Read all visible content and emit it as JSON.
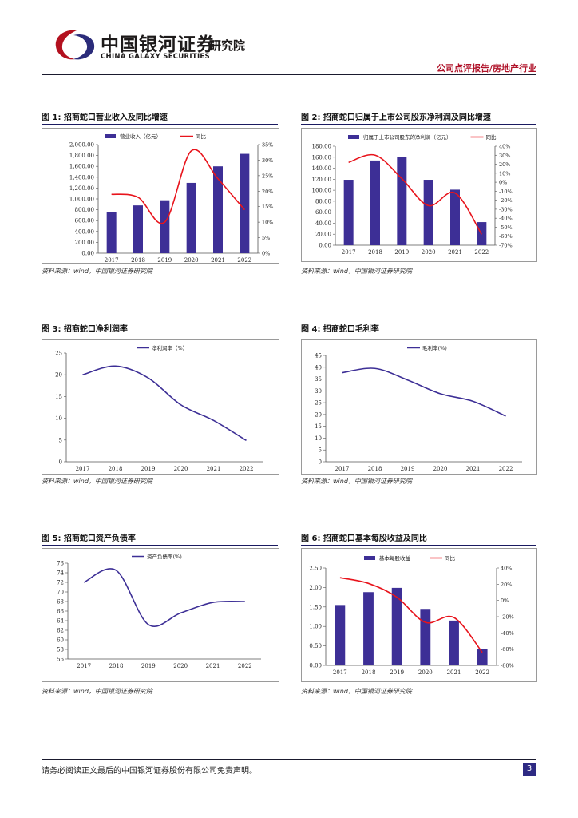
{
  "header": {
    "company_cn": "中国银河证券",
    "company_en": "CHINA GALAXY SECURITIES",
    "institute": "研究院",
    "report_type": "公司点评报告/房地产行业"
  },
  "footer": {
    "disclaimer": "请务必阅读正文最后的中国银河证券股份有限公司免责声明。",
    "page_number": "3"
  },
  "colors": {
    "bar": "#3d2f96",
    "line_red": "#e8141c",
    "line_blue": "#3d2f96"
  },
  "figures": [
    {
      "title": "图 1:  招商蛇口营业收入及同比增速",
      "source": "资料来源：wind，中国银河证券研究院"
    },
    {
      "title": "图 2:  招商蛇口归属于上市公司股东净利润及同比增速",
      "source": "资料来源：wind，中国银河证券研究院"
    },
    {
      "title": "图 3:  招商蛇口净利润率",
      "source": "资料来源：wind，中国银河证券研究院"
    },
    {
      "title": "图 4:  招商蛇口毛利率",
      "source": "资料来源：wind，中国银河证券研究院"
    },
    {
      "title": "图 5:  招商蛇口资产负债率",
      "source": "资料来源：wind，中国银河证券研究院"
    },
    {
      "title": "图 6:  招商蛇口基本每股收益及同比",
      "source": "资料来源：wind，中国银河证券研究院"
    }
  ],
  "chart_data": [
    {
      "type": "bar",
      "categories": [
        "2017",
        "2018",
        "2019",
        "2020",
        "2021",
        "2022"
      ],
      "series": [
        {
          "name": "营业收入（亿元）",
          "kind": "bar",
          "axis": "left",
          "values": [
            760,
            880,
            975,
            1295,
            1600,
            1830
          ]
        },
        {
          "name": "同比",
          "kind": "line",
          "axis": "right",
          "values": [
            19,
            18,
            10,
            33,
            24,
            14
          ]
        }
      ],
      "left_ticks": [
        "0.00",
        "200.00",
        "400.00",
        "600.00",
        "800.00",
        "1,000.00",
        "1,200.00",
        "1,400.00",
        "1,600.00",
        "1,800.00",
        "2,000.00"
      ],
      "left_range": [
        0,
        2000
      ],
      "right_ticks": [
        "0%",
        "5%",
        "10%",
        "15%",
        "20%",
        "25%",
        "30%",
        "35%"
      ],
      "right_range": [
        0,
        35
      ]
    },
    {
      "type": "bar",
      "categories": [
        "2017",
        "2018",
        "2019",
        "2020",
        "2021",
        "2022"
      ],
      "series": [
        {
          "name": "归属于上市公司股东的净利润（亿元）",
          "kind": "bar",
          "axis": "left",
          "values": [
            119,
            154,
            160,
            119,
            101,
            42
          ]
        },
        {
          "name": "同比",
          "kind": "line",
          "axis": "right",
          "values": [
            22,
            30,
            4,
            -26,
            -12,
            -58
          ]
        }
      ],
      "left_ticks": [
        "0.00",
        "20.00",
        "40.00",
        "60.00",
        "80.00",
        "100.00",
        "120.00",
        "140.00",
        "160.00",
        "180.00"
      ],
      "left_range": [
        0,
        180
      ],
      "right_ticks": [
        "-70%",
        "-60%",
        "-50%",
        "-40%",
        "-30%",
        "-20%",
        "-10%",
        "0%",
        "10%",
        "20%",
        "30%",
        "40%"
      ],
      "right_range": [
        -70,
        40
      ]
    },
    {
      "type": "line",
      "categories": [
        "2017",
        "2018",
        "2019",
        "2020",
        "2021",
        "2022"
      ],
      "series": [
        {
          "name": "净利润率（%）",
          "kind": "line",
          "axis": "left",
          "values": [
            20,
            22,
            19.3,
            13.1,
            9.5,
            4.9
          ]
        }
      ],
      "left_ticks": [
        "0",
        "5",
        "10",
        "15",
        "20",
        "25"
      ],
      "left_range": [
        0,
        25
      ]
    },
    {
      "type": "line",
      "categories": [
        "2017",
        "2018",
        "2019",
        "2020",
        "2021",
        "2022"
      ],
      "series": [
        {
          "name": "毛利率(%)",
          "kind": "line",
          "axis": "left",
          "values": [
            37.7,
            39.5,
            34.6,
            28.8,
            25.6,
            19.3
          ]
        }
      ],
      "left_ticks": [
        "0",
        "5",
        "10",
        "15",
        "20",
        "25",
        "30",
        "35",
        "40",
        "45"
      ],
      "left_range": [
        0,
        45
      ]
    },
    {
      "type": "line",
      "categories": [
        "2017",
        "2018",
        "2019",
        "2020",
        "2021",
        "2022"
      ],
      "series": [
        {
          "name": "资产负债率(%)",
          "kind": "line",
          "axis": "left",
          "values": [
            72,
            74.5,
            63.2,
            65.6,
            67.8,
            68
          ]
        }
      ],
      "left_ticks": [
        "56",
        "58",
        "60",
        "62",
        "64",
        "66",
        "68",
        "70",
        "72",
        "74",
        "76"
      ],
      "left_range": [
        56,
        76
      ]
    },
    {
      "type": "bar",
      "categories": [
        "2017",
        "2018",
        "2019",
        "2020",
        "2021",
        "2022"
      ],
      "series": [
        {
          "name": "基本每股收益",
          "kind": "bar",
          "axis": "left",
          "values": [
            1.55,
            1.88,
            1.99,
            1.45,
            1.15,
            0.42
          ]
        },
        {
          "name": "同比",
          "kind": "line",
          "axis": "right",
          "values": [
            28,
            21,
            4,
            -27,
            -21,
            -64
          ]
        }
      ],
      "left_ticks": [
        "0.00",
        "0.50",
        "1.00",
        "1.50",
        "2.00",
        "2.50"
      ],
      "left_range": [
        0,
        2.5
      ],
      "right_ticks": [
        "-80%",
        "-60%",
        "-40%",
        "-20%",
        "0%",
        "20%",
        "40%"
      ],
      "right_range": [
        -80,
        40
      ]
    }
  ]
}
